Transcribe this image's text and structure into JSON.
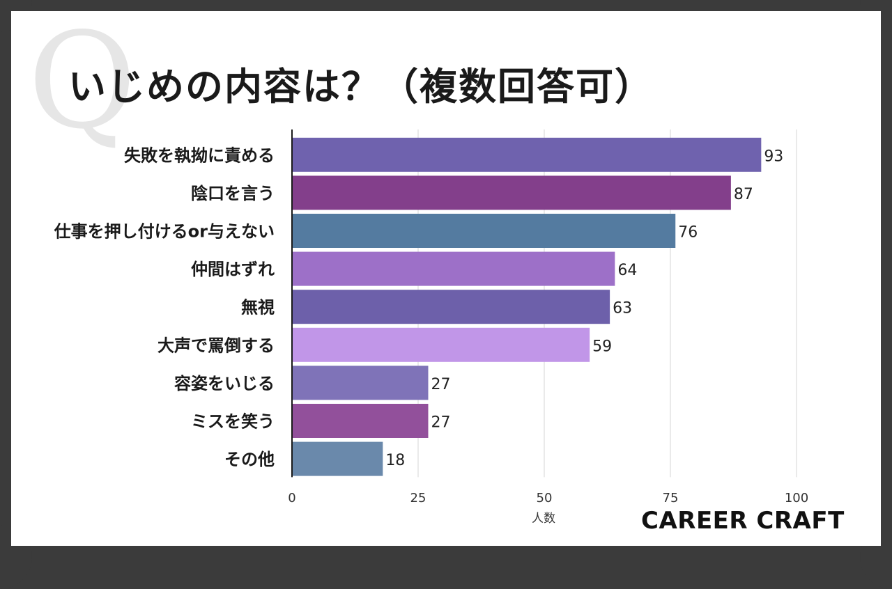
{
  "title": "いじめの内容は？（複数回答可）",
  "q_mark": "Q",
  "logo": "CAREER CRAFT",
  "chart_data": {
    "type": "bar",
    "orientation": "horizontal",
    "categories": [
      "失敗を執拗に責める",
      "陰口を言う",
      "仕事を押し付けるor与えない",
      "仲間はずれ",
      "無視",
      "大声で罵倒する",
      "容姿をいじる",
      "ミスを笑う",
      "その他"
    ],
    "values": [
      93,
      87,
      76,
      64,
      63,
      59,
      27,
      27,
      18
    ],
    "colors": [
      "#6f62ae",
      "#833f8b",
      "#547ba0",
      "#9d70c8",
      "#6d60aa",
      "#c196e8",
      "#7f73b8",
      "#92509b",
      "#6a89ab"
    ],
    "xlabel": "人数",
    "xlim": [
      0,
      100
    ],
    "xticks": [
      0,
      25,
      50,
      75,
      100
    ],
    "grid": true,
    "data_labels": true
  }
}
